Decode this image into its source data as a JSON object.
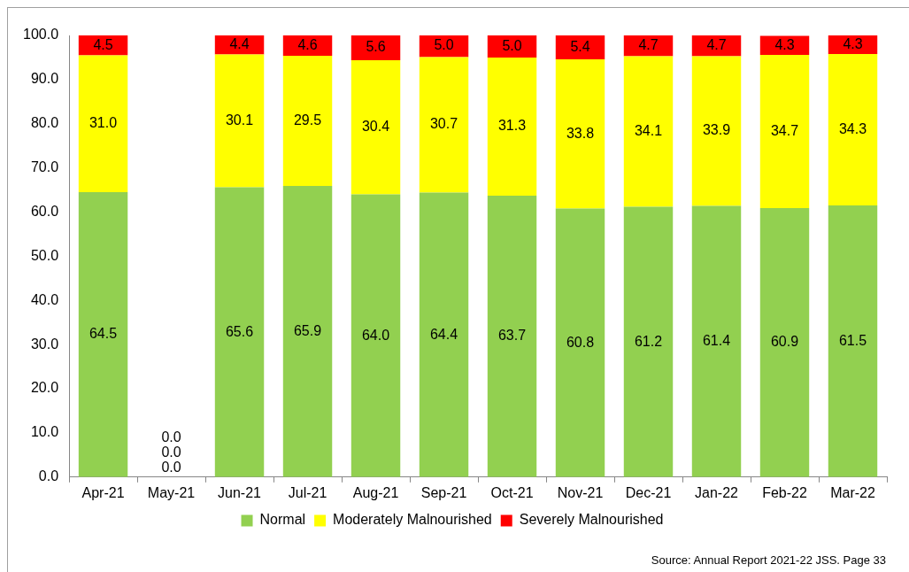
{
  "chart_data": {
    "type": "bar",
    "stacked": true,
    "categories": [
      "Apr-21",
      "May-21",
      "Jun-21",
      "Jul-21",
      "Aug-21",
      "Sep-21",
      "Oct-21",
      "Nov-21",
      "Dec-21",
      "Jan-22",
      "Feb-22",
      "Mar-22"
    ],
    "series": [
      {
        "name": "Normal",
        "color": "#92d050",
        "values": [
          64.5,
          0,
          65.6,
          65.9,
          64.0,
          64.4,
          63.7,
          60.8,
          61.2,
          61.4,
          60.9,
          61.5
        ],
        "value_labels": [
          "64.5",
          "0.0",
          "65.6",
          "65.9",
          "64.0",
          "64.4",
          "63.7",
          "60.8",
          "61.2",
          "61.4",
          "60.9",
          "61.5"
        ]
      },
      {
        "name": "Moderately Malnourished",
        "color": "#ffff00",
        "values": [
          31.0,
          0,
          30.1,
          29.5,
          30.4,
          30.7,
          31.3,
          33.8,
          34.1,
          33.9,
          34.7,
          34.3
        ],
        "value_labels": [
          "31.0",
          "0.0",
          "30.1",
          "29.5",
          "30.4",
          "30.7",
          "31.3",
          "33.8",
          "34.1",
          "33.9",
          "34.7",
          "34.3"
        ]
      },
      {
        "name": "Severely Malnourished",
        "color": "#ff0000",
        "values": [
          4.5,
          0,
          4.4,
          4.6,
          5.6,
          5.0,
          5.0,
          5.4,
          4.7,
          4.7,
          4.3,
          4.3
        ],
        "value_labels": [
          "4.5",
          "0.0",
          "4.4",
          "4.6",
          "5.6",
          "5.0",
          "5.0",
          "5.4",
          "4.7",
          "4.7",
          "4.3",
          "4.3"
        ]
      }
    ],
    "ylim": [
      0,
      100
    ],
    "yticks": [
      {
        "value": 0,
        "label": "0.0"
      },
      {
        "value": 10,
        "label": "10.0"
      },
      {
        "value": 20,
        "label": "20.0"
      },
      {
        "value": 30,
        "label": "30.0"
      },
      {
        "value": 40,
        "label": "40.0"
      },
      {
        "value": 50,
        "label": "50.0"
      },
      {
        "value": 60,
        "label": "60.0"
      },
      {
        "value": 70,
        "label": "70.0"
      },
      {
        "value": 80,
        "label": "80.0"
      },
      {
        "value": 90,
        "label": "90.0"
      },
      {
        "value": 100,
        "label": "100.0"
      }
    ],
    "grid": false,
    "legend": "bottom",
    "annotations": [
      "Source: Annual Report 2021-22 JSS. Page 33"
    ]
  }
}
